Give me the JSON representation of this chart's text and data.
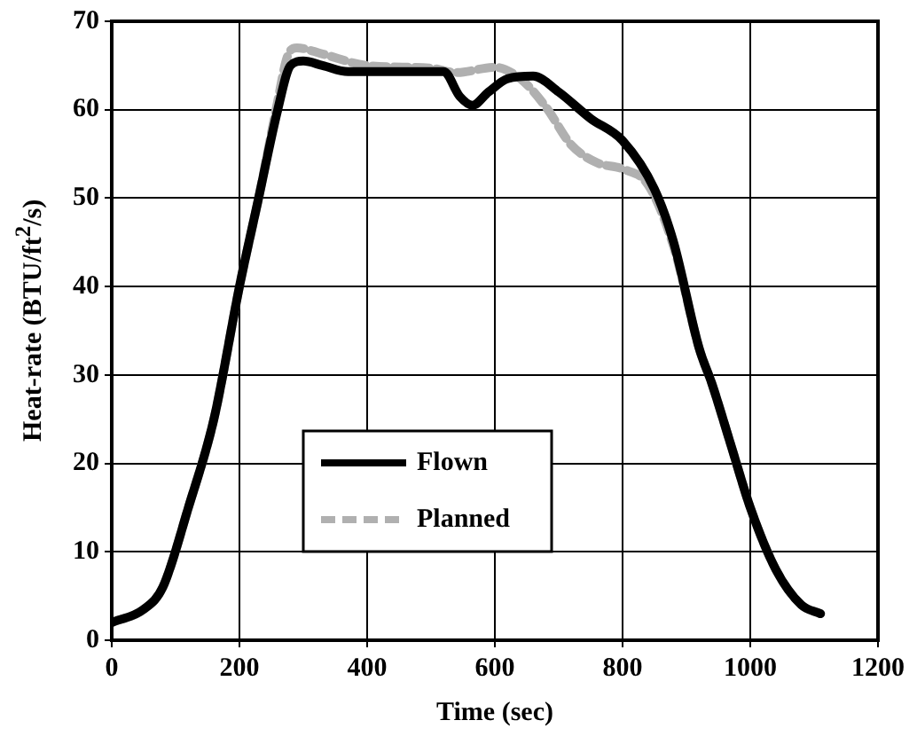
{
  "chart_data": {
    "type": "line",
    "xlabel": "Time (sec)",
    "ylabel": "Heat-rate (BTU/ft$^{2}$/s)",
    "xlim": [
      0,
      1200
    ],
    "xticks": [
      0,
      200,
      400,
      600,
      800,
      1000,
      1200
    ],
    "ylim": [
      0,
      70
    ],
    "yticks": [
      0,
      10,
      20,
      30,
      40,
      50,
      60,
      70
    ],
    "grid": true,
    "legend": "bottom",
    "marker": "none",
    "series": [
      {
        "name": "Flown",
        "color": "#000000",
        "line_style": "solid",
        "x": [
          0,
          50,
          80,
          120,
          160,
          200,
          230,
          260,
          280,
          300,
          330,
          370,
          450,
          520,
          545,
          565,
          590,
          620,
          660,
          700,
          750,
          800,
          850,
          880,
          920,
          940,
          970,
          1000,
          1040,
          1080,
          1110
        ],
        "values": [
          2,
          3.5,
          6,
          15,
          25,
          40,
          50,
          60,
          65,
          65.5,
          65,
          64.3,
          64.3,
          64.3,
          61.5,
          60.5,
          62,
          63.5,
          63.8,
          62,
          59,
          56.5,
          51,
          45,
          33,
          29,
          22,
          15,
          8,
          4,
          3
        ]
      },
      {
        "name": "Planned",
        "color": "#b0b0b0",
        "line_style": "dashed",
        "x": [
          0,
          50,
          80,
          120,
          160,
          200,
          230,
          260,
          275,
          290,
          330,
          400,
          500,
          540,
          600,
          640,
          680,
          720,
          760,
          800,
          840,
          880,
          920,
          940,
          970,
          1000,
          1040,
          1080,
          1110
        ],
        "values": [
          2,
          3.5,
          6,
          15,
          25,
          40,
          50,
          61,
          66,
          67,
          66.3,
          65,
          64.7,
          64.2,
          64.8,
          63.5,
          60.3,
          56,
          54,
          53.3,
          51.5,
          44.5,
          33,
          29,
          22,
          15,
          8,
          4,
          3
        ]
      }
    ]
  }
}
